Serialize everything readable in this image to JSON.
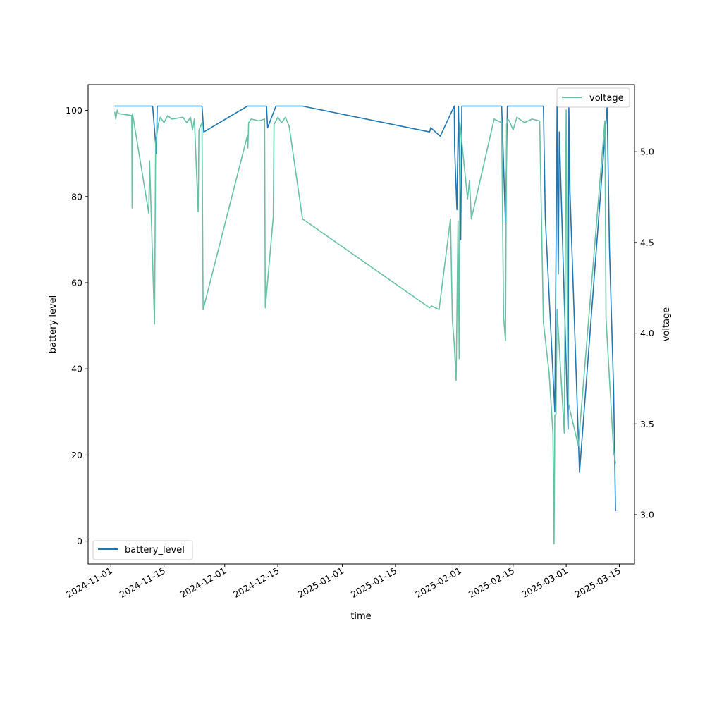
{
  "chart_data": {
    "type": "line",
    "xlabel": "time",
    "ylabel_left": "battery level",
    "ylabel_right": "voltage",
    "left_ylim": [
      -5.3,
      106
    ],
    "right_ylim": [
      2.728,
      5.37
    ],
    "xlim": [
      "2024-10-26",
      "2025-03-19"
    ],
    "left_ticks": [
      0,
      20,
      40,
      60,
      80,
      100
    ],
    "right_ticks": [
      3.0,
      3.5,
      4.0,
      4.5,
      5.0
    ],
    "right_tick_labels": [
      "3.0",
      "3.5",
      "4.0",
      "4.5",
      "5.0"
    ],
    "x_ticks": [
      "2024-11-01",
      "2024-11-15",
      "2024-12-01",
      "2024-12-15",
      "2025-01-01",
      "2025-01-15",
      "2025-02-01",
      "2025-02-15",
      "2025-03-01",
      "2025-03-15"
    ],
    "legend_left": {
      "label": "battery_level",
      "placement": "lower-left"
    },
    "legend_right": {
      "label": "voltage",
      "placement": "upper-right"
    },
    "colors": {
      "battery_level": "#1f77b4",
      "voltage": "#66c2a5"
    },
    "series": [
      {
        "name": "battery_level",
        "axis": "left",
        "color": "#1f77b4",
        "points": [
          [
            "2024-11-02",
            101
          ],
          [
            "2024-11-12",
            101
          ],
          [
            "2024-11-13",
            90
          ],
          [
            "2024-11-13.2",
            101
          ],
          [
            "2024-11-25",
            101
          ],
          [
            "2024-11-25.5",
            95
          ],
          [
            "2024-12-07",
            101
          ],
          [
            "2024-12-12",
            101
          ],
          [
            "2024-12-12.3",
            96
          ],
          [
            "2024-12-14.5",
            101
          ],
          [
            "2024-12-21.5",
            101
          ],
          [
            "2025-01-24",
            95
          ],
          [
            "2025-01-24.3",
            96
          ],
          [
            "2025-01-26.8",
            94
          ],
          [
            "2025-01-30.5",
            101
          ],
          [
            "2025-01-30.6",
            91
          ],
          [
            "2025-01-31.2",
            77
          ],
          [
            "2025-01-31.6",
            101
          ],
          [
            "2025-02-01.2",
            70
          ],
          [
            "2025-02-01.5",
            101
          ],
          [
            "2025-02-12",
            101
          ],
          [
            "2025-02-13",
            74
          ],
          [
            "2025-02-13.5",
            101
          ],
          [
            "2025-02-23",
            101
          ],
          [
            "2025-02-23.5",
            75
          ],
          [
            "2025-02-26",
            30
          ],
          [
            "2025-02-26.6",
            101
          ],
          [
            "2025-02-26.9",
            62
          ],
          [
            "2025-02-27.2",
            95
          ],
          [
            "2025-02-29.5",
            26
          ],
          [
            "2025-03-01.7",
            101
          ],
          [
            "2025-03-02",
            81
          ],
          [
            "2025-03-04.5",
            16
          ],
          [
            "2025-03-11.8",
            101
          ],
          [
            "2025-03-12.4",
            68
          ],
          [
            "2025-03-13.5",
            35
          ],
          [
            "2025-03-14",
            7
          ]
        ]
      },
      {
        "name": "voltage",
        "axis": "right",
        "color": "#66c2a5",
        "points": [
          [
            "2024-11-02",
            5.22
          ],
          [
            "2024-11-02.3",
            5.18
          ],
          [
            "2024-11-02.7",
            5.23
          ],
          [
            "2024-11-03",
            5.21
          ],
          [
            "2024-11-06.5",
            5.2
          ],
          [
            "2024-11-06.6",
            4.69
          ],
          [
            "2024-11-06.7",
            5.21
          ],
          [
            "2024-11-11",
            4.66
          ],
          [
            "2024-11-11.2",
            4.95
          ],
          [
            "2024-11-12.5",
            4.05
          ],
          [
            "2024-11-12.8",
            5.05
          ],
          [
            "2024-11-13.5",
            5.15
          ],
          [
            "2024-11-14",
            5.19
          ],
          [
            "2024-11-15",
            5.16
          ],
          [
            "2024-11-16",
            5.2
          ],
          [
            "2024-11-17",
            5.18
          ],
          [
            "2024-11-20",
            5.19
          ],
          [
            "2024-11-21",
            5.16
          ],
          [
            "2024-11-22",
            5.19
          ],
          [
            "2024-11-22.5",
            5.12
          ],
          [
            "2024-11-23",
            5.18
          ],
          [
            "2024-11-24",
            4.67
          ],
          [
            "2024-11-24.2",
            5.12
          ],
          [
            "2024-11-25",
            5.16
          ],
          [
            "2024-11-25.3",
            4.13
          ],
          [
            "2024-12-07",
            5.09
          ],
          [
            "2024-12-07.1",
            5.02
          ],
          [
            "2024-12-07.3",
            5.16
          ],
          [
            "2024-12-08",
            5.18
          ],
          [
            "2024-12-10",
            5.17
          ],
          [
            "2024-12-11.5",
            5.18
          ],
          [
            "2024-12-11.7",
            4.14
          ],
          [
            "2024-12-13.8",
            4.64
          ],
          [
            "2024-12-14",
            5.15
          ],
          [
            "2024-12-15",
            5.19
          ],
          [
            "2024-12-16",
            5.16
          ],
          [
            "2024-12-17",
            5.19
          ],
          [
            "2024-12-18",
            5.14
          ],
          [
            "2024-12-21.5",
            4.63
          ],
          [
            "2025-01-24",
            4.14
          ],
          [
            "2025-01-24.5",
            4.15
          ],
          [
            "2025-01-26.5",
            4.13
          ],
          [
            "2025-01-29.5",
            4.63
          ],
          [
            "2025-01-30",
            4.07
          ],
          [
            "2025-01-30.5",
            3.94
          ],
          [
            "2025-01-31",
            3.74
          ],
          [
            "2025-01-31.5",
            4.62
          ],
          [
            "2025-01-31.8",
            3.86
          ],
          [
            "2025-02-01",
            5.16
          ],
          [
            "2025-02-03",
            4.74
          ],
          [
            "2025-02-03.5",
            4.84
          ],
          [
            "2025-02-04",
            4.63
          ],
          [
            "2025-02-10",
            5.18
          ],
          [
            "2025-02-11",
            5.17
          ],
          [
            "2025-02-12",
            5.16
          ],
          [
            "2025-02-12.5",
            4.09
          ],
          [
            "2025-02-13",
            3.96
          ],
          [
            "2025-02-13.3",
            5.15
          ],
          [
            "2025-02-13.6",
            5.18
          ],
          [
            "2025-02-14",
            5.17
          ],
          [
            "2025-02-15",
            5.12
          ],
          [
            "2025-02-16",
            5.19
          ],
          [
            "2025-02-18",
            5.16
          ],
          [
            "2025-02-20",
            5.18
          ],
          [
            "2025-02-22",
            5.17
          ],
          [
            "2025-02-23",
            4.06
          ],
          [
            "2025-02-24.5",
            3.78
          ],
          [
            "2025-02-25.5",
            3.45
          ],
          [
            "2025-02-25.8",
            2.84
          ],
          [
            "2025-02-26",
            3.55
          ],
          [
            "2025-02-26.3",
            3.55
          ],
          [
            "2025-02-26.6",
            4.13
          ],
          [
            "2025-02-28.5",
            3.45
          ],
          [
            "2025-02-29",
            5.23
          ],
          [
            "2025-02-29.3",
            4.13
          ],
          [
            "2025-03-01.5",
            3.62
          ],
          [
            "2025-03-04.2",
            3.38
          ],
          [
            "2025-03-11.2",
            5.17
          ],
          [
            "2025-03-11.5",
            4.08
          ],
          [
            "2025-03-13.5",
            3.35
          ],
          [
            "2025-03-14",
            3.28
          ]
        ]
      }
    ]
  }
}
